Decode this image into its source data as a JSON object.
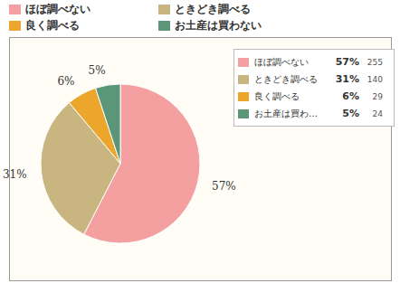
{
  "chart_data": {
    "type": "pie",
    "categories": [
      "ほぼ調べない",
      "ときどき調べる",
      "良く調べる",
      "お土産は買わない"
    ],
    "values": [
      57,
      31,
      6,
      5
    ],
    "value_labels": [
      "57%",
      "31%",
      "6%",
      "5%"
    ],
    "counts": [
      255,
      140,
      29,
      24
    ],
    "colors": [
      "#f4a0a0",
      "#c9b57f",
      "#eba62b",
      "#5b9678"
    ],
    "legend": "top",
    "data_labels": true
  }
}
